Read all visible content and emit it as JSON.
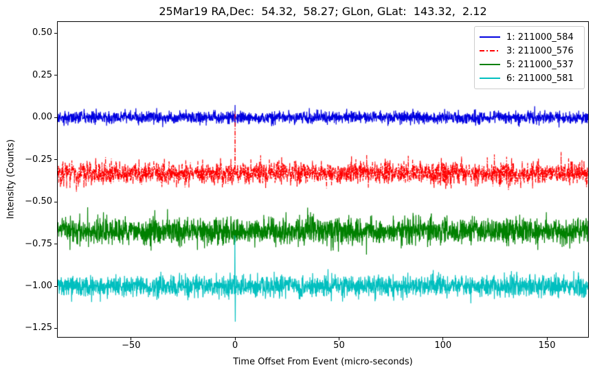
{
  "chart_data": {
    "type": "line",
    "title": "25Mar19 RA,Dec:  54.32,  58.27; GLon, GLat:  143.32,  2.12",
    "xlabel": "Time Offset From Event (micro-seconds)",
    "ylabel": "Intensity (Counts)",
    "xlim": [
      -85.3,
      169.8
    ],
    "ylim": [
      -1.301,
      0.567
    ],
    "grid": false,
    "legend_position": "upper-right",
    "xticks": [
      {
        "value": -50,
        "label": "−50"
      },
      {
        "value": 0,
        "label": "0"
      },
      {
        "value": 50,
        "label": "50"
      },
      {
        "value": 100,
        "label": "100"
      },
      {
        "value": 150,
        "label": "150"
      }
    ],
    "yticks": [
      {
        "value": 0.5,
        "label": "0.50"
      },
      {
        "value": 0.25,
        "label": "0.25"
      },
      {
        "value": 0.0,
        "label": "0.00"
      },
      {
        "value": -0.25,
        "label": "−0.25"
      },
      {
        "value": -0.5,
        "label": "−0.50"
      },
      {
        "value": -0.75,
        "label": "−0.75"
      },
      {
        "value": -1.0,
        "label": "−1.00"
      },
      {
        "value": -1.25,
        "label": "−1.25"
      }
    ],
    "sample_step_microseconds": 0.1,
    "series": [
      {
        "legend_label": "1: 211000_584",
        "color": "#0000e0",
        "linestyle": "solid",
        "baseline": 0.0,
        "noise_amplitude": 0.018,
        "spikes": [
          {
            "t": 0.0,
            "value": 0.075
          }
        ],
        "seed": 101
      },
      {
        "legend_label": "3: 211000_576",
        "color": "#ff0000",
        "linestyle": "dash-dot",
        "baseline": -0.33,
        "noise_amplitude": 0.034,
        "spikes": [
          {
            "t": 0.0,
            "value": 0.034
          }
        ],
        "seed": 303
      },
      {
        "legend_label": "5: 211000_537",
        "color": "#008000",
        "linestyle": "solid",
        "baseline": -0.672,
        "noise_amplitude": 0.041,
        "spikes": [],
        "seed": 505
      },
      {
        "legend_label": "6: 211000_581",
        "color": "#00bfbf",
        "linestyle": "solid",
        "baseline": -1.0,
        "noise_amplitude": 0.031,
        "spikes": [
          {
            "t": -0.1,
            "value": -0.7
          },
          {
            "t": 0.1,
            "value": -1.21
          }
        ],
        "seed": 606
      }
    ]
  }
}
